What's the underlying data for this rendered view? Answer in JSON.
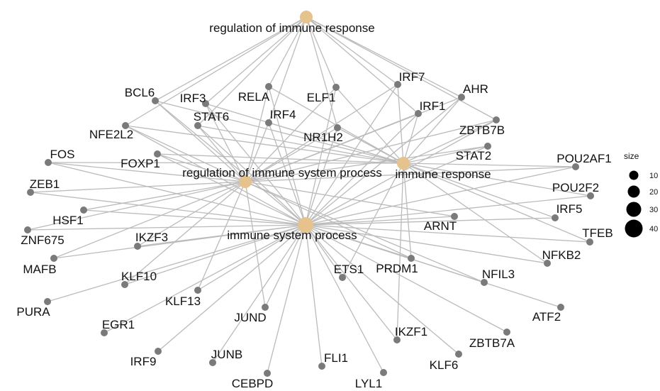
{
  "chart_data": {
    "type": "network",
    "colors": {
      "edge": "#bbbbbb",
      "gene_node": "#7a7a7a",
      "term_node": "#e6c28c",
      "text": "#111111",
      "legend_dot": "#000000"
    },
    "terms": [
      {
        "id": "regulation of immune response"
      },
      {
        "id": "regulation of immune system process"
      },
      {
        "id": "immune response"
      },
      {
        "id": "immune system process"
      }
    ],
    "genes": [
      {
        "id": "BCL6",
        "terms": [
          "regulation of immune response",
          "regulation of immune system process",
          "immune response",
          "immune system process"
        ]
      },
      {
        "id": "IRF3",
        "terms": [
          "regulation of immune response",
          "regulation of immune system process",
          "immune response",
          "immune system process"
        ]
      },
      {
        "id": "RELA",
        "terms": [
          "regulation of immune response",
          "regulation of immune system process",
          "immune response",
          "immune system process"
        ]
      },
      {
        "id": "ELF1",
        "terms": [
          "regulation of immune response",
          "regulation of immune system process",
          "immune response",
          "immune system process"
        ]
      },
      {
        "id": "IRF7",
        "terms": [
          "regulation of immune response",
          "regulation of immune system process",
          "immune response",
          "immune system process"
        ]
      },
      {
        "id": "AHR",
        "terms": [
          "regulation of immune response",
          "regulation of immune system process",
          "immune response",
          "immune system process"
        ]
      },
      {
        "id": "IRF1",
        "terms": [
          "regulation of immune response",
          "regulation of immune system process",
          "immune response",
          "immune system process"
        ]
      },
      {
        "id": "STAT6",
        "terms": [
          "regulation of immune response",
          "regulation of immune system process",
          "immune response",
          "immune system process"
        ]
      },
      {
        "id": "IRF4",
        "terms": [
          "regulation of immune response",
          "regulation of immune system process",
          "immune response",
          "immune system process"
        ]
      },
      {
        "id": "NFE2L2",
        "terms": [
          "regulation of immune response",
          "regulation of immune system process",
          "immune response",
          "immune system process"
        ]
      },
      {
        "id": "NR1H2",
        "terms": [
          "regulation of immune response",
          "regulation of immune system process",
          "immune response",
          "immune system process"
        ]
      },
      {
        "id": "ZBTB7B",
        "terms": [
          "regulation of immune response",
          "regulation of immune system process",
          "immune response",
          "immune system process"
        ]
      },
      {
        "id": "STAT2",
        "terms": [
          "regulation of immune system process",
          "immune response",
          "immune system process"
        ]
      },
      {
        "id": "FOXP1",
        "terms": [
          "regulation of immune system process",
          "immune response",
          "immune system process"
        ]
      },
      {
        "id": "FOS",
        "terms": [
          "regulation of immune system process",
          "immune response",
          "immune system process"
        ]
      },
      {
        "id": "POU2AF1",
        "terms": [
          "regulation of immune system process",
          "immune response",
          "immune system process"
        ]
      },
      {
        "id": "ZEB1",
        "terms": [
          "regulation of immune system process",
          "immune system process"
        ]
      },
      {
        "id": "POU2F2",
        "terms": [
          "immune response",
          "immune system process"
        ]
      },
      {
        "id": "HSF1",
        "terms": [
          "regulation of immune system process",
          "immune system process"
        ]
      },
      {
        "id": "IRF5",
        "terms": [
          "immune response",
          "immune system process"
        ]
      },
      {
        "id": "ARNT",
        "terms": [
          "regulation of immune system process",
          "immune system process"
        ]
      },
      {
        "id": "ZNF675",
        "terms": [
          "regulation of immune system process",
          "immune system process"
        ]
      },
      {
        "id": "TFEB",
        "terms": [
          "immune response",
          "immune system process"
        ]
      },
      {
        "id": "IKZF3",
        "terms": [
          "regulation of immune system process",
          "immune system process"
        ]
      },
      {
        "id": "MAFB",
        "terms": [
          "regulation of immune system process",
          "immune system process"
        ]
      },
      {
        "id": "NFKB2",
        "terms": [
          "immune response",
          "immune system process"
        ]
      },
      {
        "id": "KLF10",
        "terms": [
          "regulation of immune system process",
          "immune system process"
        ]
      },
      {
        "id": "PRDM1",
        "terms": [
          "regulation of immune system process",
          "immune response",
          "immune system process"
        ]
      },
      {
        "id": "ETS1",
        "terms": [
          "immune response",
          "immune system process"
        ]
      },
      {
        "id": "NFIL3",
        "terms": [
          "regulation of immune system process",
          "immune system process"
        ]
      },
      {
        "id": "PURA",
        "terms": [
          "immune system process"
        ]
      },
      {
        "id": "KLF13",
        "terms": [
          "regulation of immune system process",
          "immune system process"
        ]
      },
      {
        "id": "ATF2",
        "terms": [
          "immune system process"
        ]
      },
      {
        "id": "JUND",
        "terms": [
          "regulation of immune system process",
          "immune system process"
        ]
      },
      {
        "id": "EGR1",
        "terms": [
          "immune system process"
        ]
      },
      {
        "id": "IKZF1",
        "terms": [
          "immune response",
          "immune system process"
        ]
      },
      {
        "id": "ZBTB7A",
        "terms": [
          "immune system process"
        ]
      },
      {
        "id": "IRF9",
        "terms": [
          "immune system process"
        ]
      },
      {
        "id": "JUNB",
        "terms": [
          "immune system process"
        ]
      },
      {
        "id": "KLF6",
        "terms": [
          "immune system process"
        ]
      },
      {
        "id": "FLI1",
        "terms": [
          "immune system process"
        ]
      },
      {
        "id": "CEBPD",
        "terms": [
          "immune system process"
        ]
      },
      {
        "id": "LYL1",
        "terms": [
          "immune system process"
        ]
      }
    ],
    "legend": {
      "title": "size",
      "entries": [
        {
          "label": "10",
          "value": 10
        },
        {
          "label": "20",
          "value": 20
        },
        {
          "label": "30",
          "value": 30
        },
        {
          "label": "40",
          "value": 40
        }
      ]
    }
  }
}
